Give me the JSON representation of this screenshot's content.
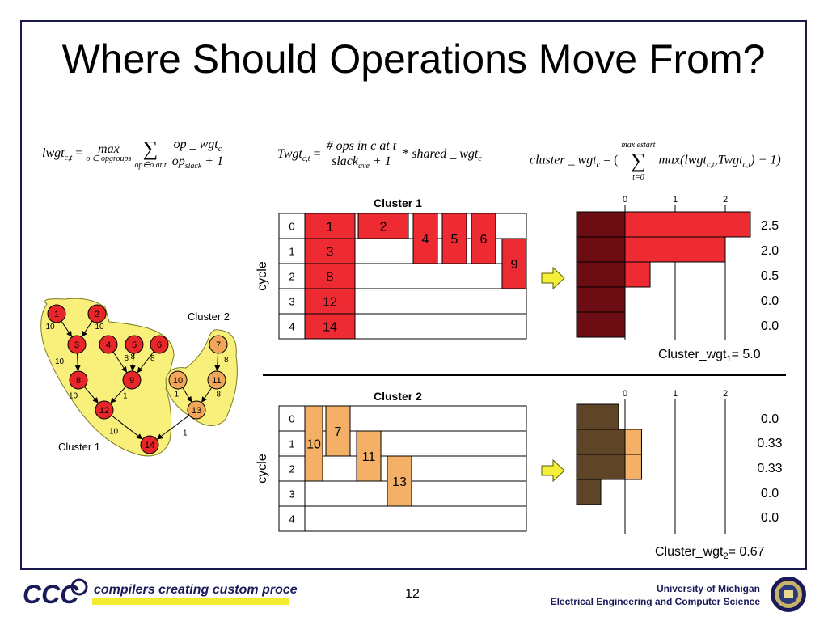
{
  "slide": {
    "title": "Where Should Operations Move From?",
    "page_number": "12"
  },
  "formulas": {
    "lwgt": {
      "lhs": "lwgt",
      "lhs_sub": "c,t",
      "max": "max",
      "max_sub": "o ∈ opgroups",
      "sum_sub": "op∈o at t",
      "num": "op _ wgt",
      "num_sub": "c",
      "den": "op",
      "den_sub": "slack",
      "den_tail": "+ 1"
    },
    "twgt": {
      "lhs": "Twgt",
      "lhs_sub": "c,t",
      "num": "# ops in c at t",
      "den": "slack",
      "den_sub": "ave",
      "den_tail": "+ 1",
      "tail": "* shared _ wgt",
      "tail_sub": "c"
    },
    "cluster": {
      "lhs": "cluster _ wgt",
      "lhs_sub": "c",
      "sum_sup": "max estart",
      "sum_sub": "t=0",
      "body": "max(lwgt",
      "body_sub1": "c,t",
      "mid": ",Twgt",
      "body_sub2": "c,t",
      "end": ") − 1)"
    }
  },
  "graph": {
    "cluster1_label": "Cluster 1",
    "cluster2_label": "Cluster 2",
    "nodes": [
      {
        "id": "1",
        "cluster": 1
      },
      {
        "id": "2",
        "cluster": 1
      },
      {
        "id": "3",
        "cluster": 1
      },
      {
        "id": "4",
        "cluster": 1
      },
      {
        "id": "5",
        "cluster": 1
      },
      {
        "id": "6",
        "cluster": 1
      },
      {
        "id": "8",
        "cluster": 1
      },
      {
        "id": "9",
        "cluster": 1
      },
      {
        "id": "12",
        "cluster": 1
      },
      {
        "id": "14",
        "cluster": 1
      },
      {
        "id": "7",
        "cluster": 2
      },
      {
        "id": "10",
        "cluster": 2
      },
      {
        "id": "11",
        "cluster": 2
      },
      {
        "id": "13",
        "cluster": 2
      }
    ],
    "edges": [
      {
        "from": "1",
        "to": "3",
        "label": "10"
      },
      {
        "from": "2",
        "to": "3",
        "label": "10"
      },
      {
        "from": "3",
        "to": "8",
        "label": "10"
      },
      {
        "from": "4",
        "to": "9",
        "label": "8"
      },
      {
        "from": "5",
        "to": "9",
        "label": "8"
      },
      {
        "from": "6",
        "to": "9",
        "label": "8"
      },
      {
        "from": "8",
        "to": "12",
        "label": "10"
      },
      {
        "from": "9",
        "to": "12",
        "label": "1"
      },
      {
        "from": "12",
        "to": "14",
        "label": "10"
      },
      {
        "from": "13",
        "to": "14",
        "label": "1"
      },
      {
        "from": "7",
        "to": "11",
        "label": "8"
      },
      {
        "from": "10",
        "to": "13",
        "label": "1"
      },
      {
        "from": "11",
        "to": "13",
        "label": "8"
      }
    ]
  },
  "schedules": [
    {
      "title": "Cluster 1",
      "axis_label": "cycle",
      "rows": [
        "0",
        "1",
        "2",
        "3",
        "4"
      ],
      "ops": [
        {
          "label": "1",
          "col": 0,
          "start": 0,
          "span": 1
        },
        {
          "label": "3",
          "col": 0,
          "start": 1,
          "span": 1
        },
        {
          "label": "8",
          "col": 0,
          "start": 2,
          "span": 1
        },
        {
          "label": "12",
          "col": 0,
          "start": 3,
          "span": 1
        },
        {
          "label": "14",
          "col": 0,
          "start": 4,
          "span": 1
        },
        {
          "label": "2",
          "col": 1,
          "start": 0,
          "span": 1
        },
        {
          "label": "4",
          "col": 2,
          "start": 0,
          "span": 2
        },
        {
          "label": "5",
          "col": 3,
          "start": 0,
          "span": 2
        },
        {
          "label": "6",
          "col": 4,
          "start": 0,
          "span": 2
        },
        {
          "label": "9",
          "col": 5,
          "start": 1,
          "span": 2
        }
      ],
      "weights": [
        "2.5",
        "2.0",
        "0.5",
        "0.0",
        "0.0"
      ],
      "weight_values": [
        2.5,
        2.0,
        0.5,
        0.0,
        0.0
      ],
      "axis_ticks": [
        "0",
        "1",
        "2"
      ],
      "total_prefix": "Cluster_wgt",
      "total_sub": "1",
      "total_value": "= 5.0",
      "color": "#ee2b33",
      "base_color": "#6b0d12"
    },
    {
      "title": "Cluster 2",
      "axis_label": "cycle",
      "rows": [
        "0",
        "1",
        "2",
        "3",
        "4"
      ],
      "ops": [
        {
          "label": "10",
          "col": 0,
          "start": 0,
          "span": 3
        },
        {
          "label": "7",
          "col": 1,
          "start": 0,
          "span": 2
        },
        {
          "label": "11",
          "col": 2,
          "start": 1,
          "span": 2
        },
        {
          "label": "13",
          "col": 3,
          "start": 2,
          "span": 2
        }
      ],
      "weights": [
        "0.0",
        "0.33",
        "0.33",
        "0.0",
        "0.0"
      ],
      "weight_values": [
        0.0,
        0.33,
        0.33,
        0.0,
        0.0
      ],
      "axis_ticks": [
        "0",
        "1",
        "2"
      ],
      "total_prefix": "Cluster_wgt",
      "total_sub": "2",
      "total_value": "= 0.67",
      "color": "#f4b066",
      "base_color": "#5e4527"
    }
  ],
  "footer": {
    "logo_text": "CCC",
    "tagline": "compilers creating custom processors",
    "university": "University of Michigan",
    "department": "Electrical Engineering and Computer Science"
  },
  "colors": {
    "cluster1_node": "#e8262a",
    "cluster2_node": "#f2a65a",
    "blob": "#f8f07a",
    "arrow": "#f4f03a",
    "footer_blue": "#1a1a5a"
  }
}
